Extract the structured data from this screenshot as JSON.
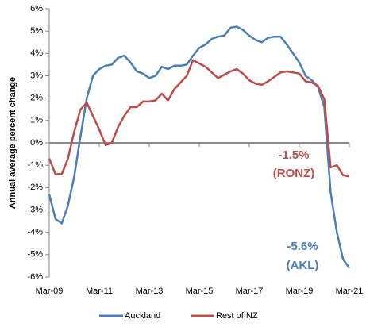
{
  "chart_data": {
    "type": "line",
    "y_label": "Annual average percent change",
    "categories": [
      "Mar-09",
      null,
      null,
      null,
      null,
      null,
      null,
      null,
      "Mar-11",
      null,
      null,
      null,
      null,
      null,
      null,
      null,
      "Mar-13",
      null,
      null,
      null,
      null,
      null,
      null,
      null,
      "Mar-15",
      null,
      null,
      null,
      null,
      null,
      null,
      null,
      "Mar-17",
      null,
      null,
      null,
      null,
      null,
      null,
      null,
      "Mar-19",
      null,
      null,
      null,
      null,
      null,
      null,
      null,
      "Mar-21"
    ],
    "series": [
      {
        "name": "Auckland",
        "color": "#4a7ebb",
        "values": [
          -2.3,
          -3.4,
          -3.6,
          -2.8,
          -1.5,
          0.3,
          2.0,
          3.0,
          3.3,
          3.45,
          3.5,
          3.8,
          3.9,
          3.6,
          3.2,
          3.1,
          2.9,
          3.0,
          3.4,
          3.3,
          3.45,
          3.45,
          3.5,
          3.9,
          4.25,
          4.4,
          4.65,
          4.75,
          4.8,
          5.15,
          5.2,
          5.05,
          4.8,
          4.6,
          4.5,
          4.7,
          4.75,
          4.75,
          4.4,
          4.0,
          3.6,
          3.0,
          2.8,
          2.5,
          1.6,
          -2.2,
          -4.0,
          -5.2,
          -5.6
        ]
      },
      {
        "name": "Rest of NZ",
        "color": "#be4b48",
        "values": [
          -0.7,
          -1.4,
          -1.4,
          -0.7,
          0.5,
          1.5,
          1.8,
          1.2,
          0.6,
          -0.1,
          0.0,
          0.7,
          1.2,
          1.6,
          1.6,
          1.85,
          1.85,
          1.9,
          2.2,
          1.9,
          2.4,
          2.7,
          3.0,
          3.7,
          3.55,
          3.4,
          3.15,
          2.9,
          3.05,
          3.2,
          3.3,
          3.1,
          2.8,
          2.65,
          2.6,
          2.75,
          2.95,
          3.15,
          3.2,
          3.15,
          3.1,
          2.75,
          2.7,
          2.55,
          1.95,
          -1.1,
          -1.0,
          -1.45,
          -1.5
        ]
      }
    ],
    "annotations": [
      {
        "text": "-1.5%",
        "series": 1
      },
      {
        "text": "(RONZ)",
        "series": 1
      },
      {
        "text": "-5.6%",
        "series": 0
      },
      {
        "text": "(AKL)",
        "series": 0
      }
    ],
    "ylim": [
      -6,
      6
    ],
    "yticks": [
      {
        "value": -6,
        "label": "-6%"
      },
      {
        "value": -5,
        "label": "-5%"
      },
      {
        "value": -4,
        "label": "-4%"
      },
      {
        "value": -3,
        "label": "-3%"
      },
      {
        "value": -2,
        "label": "-2%"
      },
      {
        "value": -1,
        "label": "-1%"
      },
      {
        "value": 0,
        "label": "0%"
      },
      {
        "value": 1,
        "label": "1%"
      },
      {
        "value": 2,
        "label": "2%"
      },
      {
        "value": 3,
        "label": "3%"
      },
      {
        "value": 4,
        "label": "4%"
      },
      {
        "value": 5,
        "label": "5%"
      },
      {
        "value": 6,
        "label": "6%"
      }
    ],
    "legend": "bottom"
  }
}
